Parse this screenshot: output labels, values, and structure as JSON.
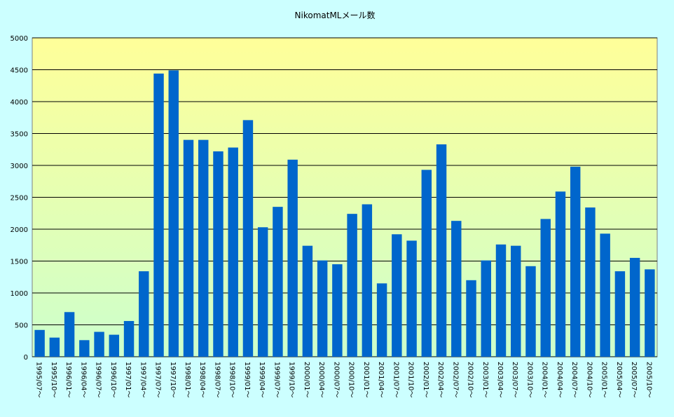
{
  "chart_data": {
    "type": "bar",
    "title": "NikomatMLメール数",
    "xlabel": "",
    "ylabel": "",
    "ylim": [
      0,
      5000
    ],
    "yticks": [
      0,
      500,
      1000,
      1500,
      2000,
      2500,
      3000,
      3500,
      4000,
      4500,
      5000
    ],
    "grid": true,
    "legend": "none",
    "categories": [
      "1995/07～",
      "1995/10～",
      "1996/01～",
      "1996/04～",
      "1996/07～",
      "1996/10～",
      "1997/01～",
      "1997/04～",
      "1997/07～",
      "1997/10～",
      "1998/01～",
      "1998/04～",
      "1998/07～",
      "1998/10～",
      "1999/01～",
      "1999/04～",
      "1999/07～",
      "1999/10～",
      "2000/01～",
      "2000/04～",
      "2000/07～",
      "2000/10～",
      "2001/01～",
      "2001/04～",
      "2001/07～",
      "2001/10～",
      "2002/01～",
      "2002/04～",
      "2002/07～",
      "2002/10～",
      "2003/01～",
      "2003/04～",
      "2003/07～",
      "2003/10～",
      "2004/01～",
      "2004/04～",
      "2004/07～",
      "2004/10～",
      "2005/01～",
      "2005/04～",
      "2005/07～",
      "2005/10～"
    ],
    "values": [
      420,
      300,
      700,
      260,
      390,
      345,
      560,
      1340,
      4440,
      4490,
      3400,
      3400,
      3220,
      3280,
      3710,
      2030,
      2350,
      3090,
      1740,
      1510,
      1450,
      2240,
      2390,
      1150,
      1920,
      1820,
      2930,
      3330,
      2130,
      1200,
      1510,
      1760,
      1740,
      1420,
      2160,
      2590,
      2980,
      2340,
      1930,
      1340,
      1550,
      1370
    ],
    "colors": {
      "bar": "#0066cc",
      "background": "#ccffff",
      "plot_gradient_top": "#ffff99",
      "plot_gradient_bottom": "#ccffcc",
      "grid": "#000000"
    }
  }
}
